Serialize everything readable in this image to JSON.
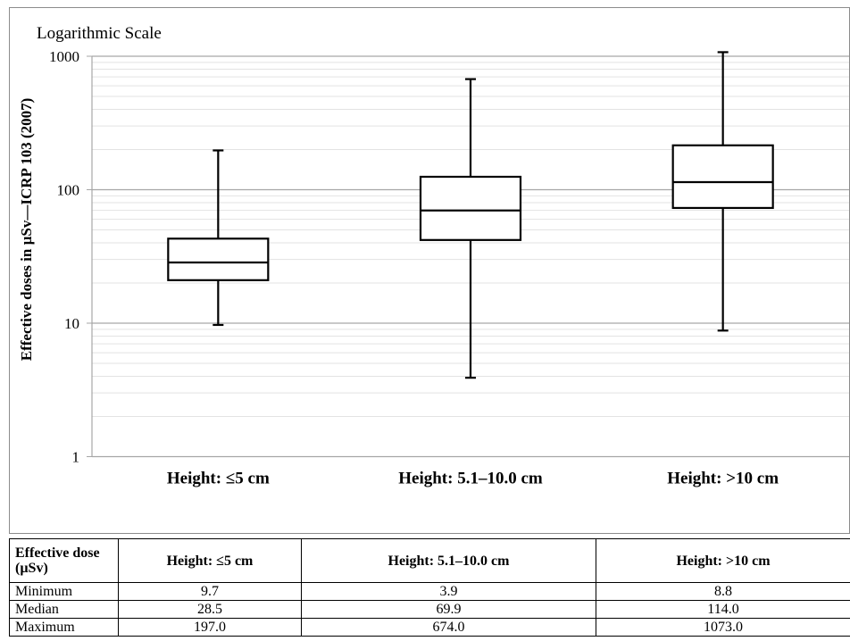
{
  "chart_data": {
    "type": "boxplot",
    "annotation": "Logarithmic Scale",
    "ylabel": "Effective doses in µSv—ICRP 103 (2007)",
    "xlabel": "",
    "yscale": "log",
    "ylim": [
      1,
      1000
    ],
    "yticks": [
      1,
      10,
      100,
      1000
    ],
    "grid": true,
    "categories": [
      "Height: ≤5 cm",
      "Height: 5.1–10.0 cm",
      "Height: >10 cm"
    ],
    "boxes": [
      {
        "category": "Height: ≤5 cm",
        "min": 9.7,
        "q1": 21,
        "median": 28.5,
        "q3": 43,
        "max": 197.0
      },
      {
        "category": "Height: 5.1–10.0 cm",
        "min": 3.9,
        "q1": 42,
        "median": 69.9,
        "q3": 125,
        "max": 674.0
      },
      {
        "category": "Height: >10 cm",
        "min": 8.8,
        "q1": 73,
        "median": 114.0,
        "q3": 215,
        "max": 1073.0
      }
    ]
  },
  "table": {
    "corner_label": "Effective dose (µSv)",
    "headers": [
      "Height: ≤5 cm",
      "Height: 5.1–10.0 cm",
      "Height: >10 cm"
    ],
    "rows": [
      {
        "label": "Minimum",
        "values": [
          "9.7",
          "3.9",
          "8.8"
        ]
      },
      {
        "label": "Median",
        "values": [
          "28.5",
          "69.9",
          "114.0"
        ]
      },
      {
        "label": "Maximum",
        "values": [
          "197.0",
          "674.0",
          "1073.0"
        ]
      }
    ]
  }
}
